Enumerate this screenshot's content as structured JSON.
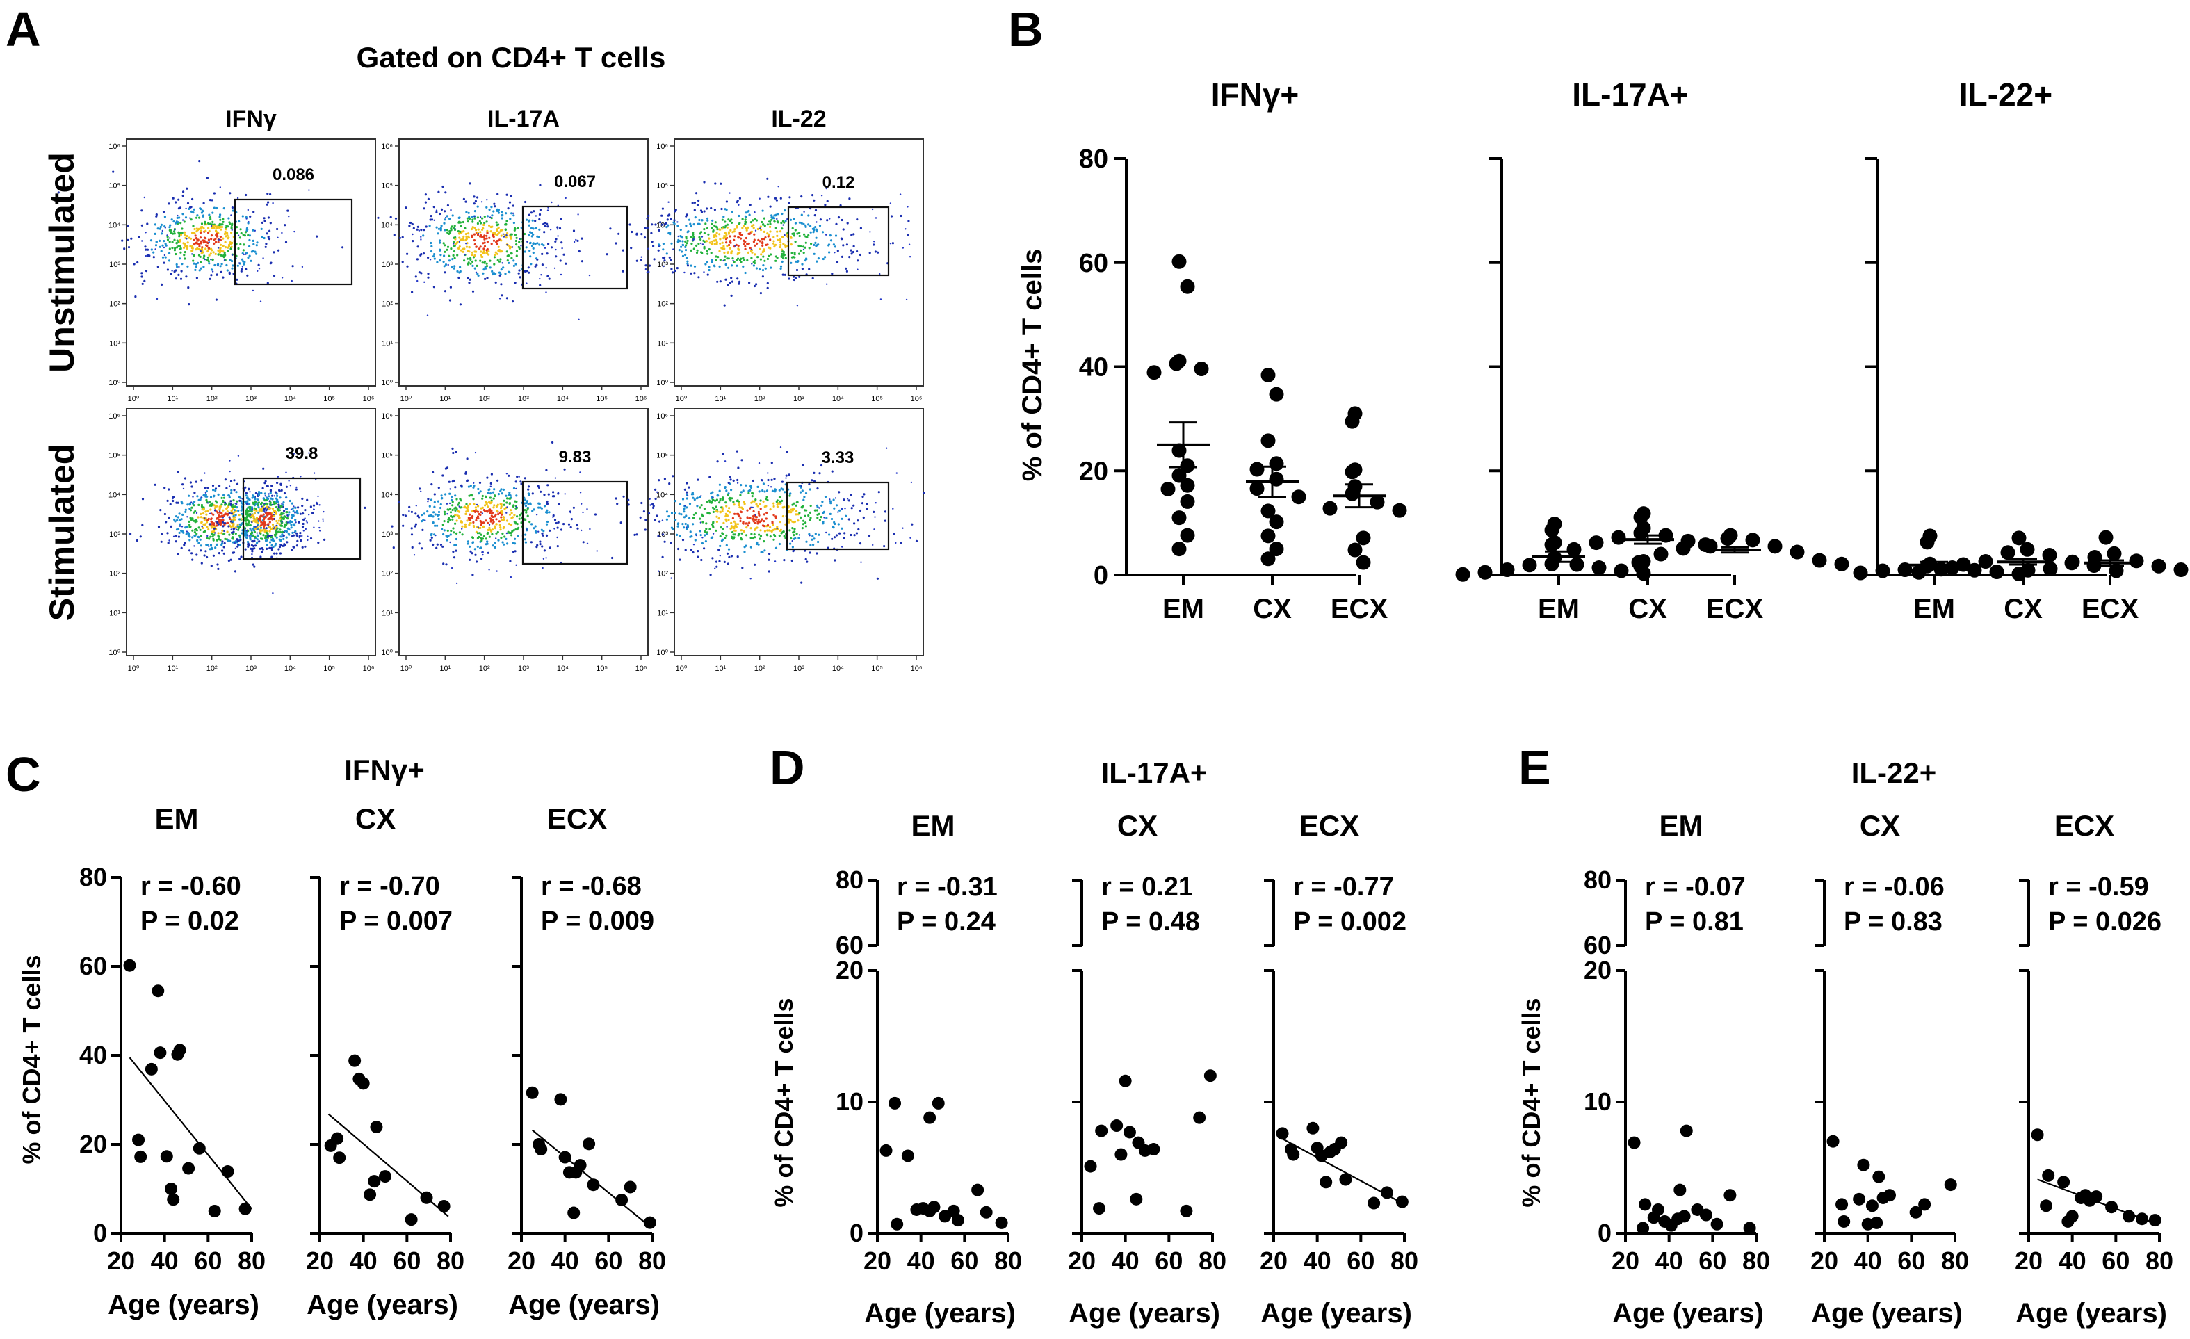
{
  "panel_letters": [
    "A",
    "B",
    "C",
    "D",
    "E"
  ],
  "ui": {
    "ylabel": "% of CD4+ T cells",
    "xlabel": "Age (years)"
  },
  "chart_data": {
    "A": {
      "type": "scatter",
      "title": "Gated on CD4+ T cells",
      "columns": [
        "IFNγ",
        "IL-17A",
        "IL-22"
      ],
      "rows": [
        "Unstimulated",
        "Stimulated"
      ],
      "gate_values": [
        [
          "0.086",
          "0.067",
          "0.12"
        ],
        [
          "39.8",
          "9.83",
          "3.33"
        ]
      ],
      "axis_ticks": [
        "10⁰",
        "10¹",
        "10²",
        "10³",
        "10⁴",
        "10⁵",
        "10⁶"
      ]
    },
    "B": {
      "type": "scatter",
      "ylabel": "% of CD4+ T cells",
      "ylim": [
        0,
        80
      ],
      "yticks": [
        0,
        20,
        40,
        60,
        80
      ],
      "categories": [
        "EM",
        "CX",
        "ECX"
      ],
      "panels": [
        {
          "title": "IFNγ+",
          "groups": [
            {
              "name": "EM",
              "mean": 25.0,
              "sem": 4.3,
              "values": [
                60.2,
                55.4,
                41.1,
                40.6,
                39.6,
                38.9,
                23.9,
                21.0,
                19.1,
                17.2,
                16.5,
                14.1,
                11.0,
                7.6,
                5.0
              ]
            },
            {
              "name": "CX",
              "mean": 17.9,
              "sem": 2.9,
              "values": [
                38.4,
                34.7,
                25.8,
                21.4,
                20.3,
                18.4,
                16.6,
                15.0,
                12.3,
                10.2,
                7.5,
                5.0,
                3.1
              ]
            },
            {
              "name": "ECX",
              "mean": 15.2,
              "sem": 2.2,
              "values": [
                31.0,
                29.5,
                20.2,
                19.8,
                17.0,
                15.6,
                14.0,
                12.8,
                12.4,
                7.1,
                4.8,
                2.4
              ]
            }
          ]
        },
        {
          "title": "IL-17A+",
          "groups": [
            {
              "name": "EM",
              "mean": 3.5,
              "sem": 1.0,
              "values": [
                9.8,
                8.6,
                6.2,
                5.8,
                3.3,
                2.1,
                2.0,
                1.9,
                1.4,
                1.0,
                0.8,
                0.5,
                0.3,
                0.1
              ]
            },
            {
              "name": "CX",
              "mean": 6.8,
              "sem": 0.8,
              "values": [
                11.8,
                11.1,
                9.0,
                8.1,
                7.6,
                7.2,
                6.5,
                6.2,
                5.5,
                4.9,
                2.6,
                1.6
              ]
            },
            {
              "name": "ECX",
              "mean": 4.8,
              "sem": 0.5,
              "values": [
                7.6,
                7.0,
                6.7,
                5.8,
                5.5,
                5.1,
                4.4,
                4.0,
                2.8,
                2.4,
                2.1
              ]
            }
          ]
        },
        {
          "title": "IL-22+",
          "groups": [
            {
              "name": "EM",
              "mean": 1.9,
              "sem": 0.6,
              "values": [
                7.5,
                6.3,
                2.1,
                1.7,
                1.4,
                1.0,
                0.9,
                0.8,
                0.6,
                0.4,
                0.2
              ]
            },
            {
              "name": "CX",
              "mean": 2.5,
              "sem": 0.5,
              "values": [
                7.1,
                4.9,
                4.3,
                3.8,
                2.6,
                2.3,
                2.0,
                1.8,
                1.1,
                0.8,
                0.5
              ]
            },
            {
              "name": "ECX",
              "mean": 2.3,
              "sem": 0.5,
              "values": [
                7.2,
                4.1,
                3.4,
                2.7,
                2.5,
                1.7,
                1.2,
                1.0,
                0.9,
                0.3
              ]
            }
          ]
        }
      ]
    },
    "C": {
      "type": "scatter",
      "title": "IFNγ+",
      "xlabel": "Age (years)",
      "ylabel": "% of CD4+ T cells",
      "xlim": [
        20,
        80
      ],
      "xticks": [
        20,
        40,
        60,
        80
      ],
      "ylim": [
        0,
        80
      ],
      "yticks": [
        0,
        20,
        40,
        60,
        80
      ],
      "subplots": [
        {
          "title": "EM",
          "r": "r = -0.60",
          "p": "P = 0.02",
          "fit": [
            [
              24,
              39.5
            ],
            [
              80,
              5.5
            ]
          ],
          "points": [
            [
              24,
              60.2
            ],
            [
              28,
              21
            ],
            [
              29,
              17.2
            ],
            [
              34,
              36.9
            ],
            [
              37,
              54.5
            ],
            [
              38,
              40.6
            ],
            [
              41,
              17.3
            ],
            [
              43,
              10
            ],
            [
              44,
              7.6
            ],
            [
              46,
              40.2
            ],
            [
              47,
              41.2
            ],
            [
              51,
              14.6
            ],
            [
              56,
              19.1
            ],
            [
              63,
              5
            ],
            [
              69,
              13.9
            ],
            [
              77,
              5.5
            ]
          ]
        },
        {
          "title": "CX",
          "r": "r = -0.70",
          "p": "P = 0.007",
          "fit": [
            [
              24,
              26.8
            ],
            [
              79,
              3.8
            ]
          ],
          "points": [
            [
              25,
              19.7
            ],
            [
              28,
              21.3
            ],
            [
              29,
              17
            ],
            [
              36,
              38.8
            ],
            [
              38,
              34.7
            ],
            [
              40,
              33.7
            ],
            [
              43,
              8.7
            ],
            [
              45,
              11.7
            ],
            [
              46,
              23.9
            ],
            [
              50,
              12.8
            ],
            [
              62,
              3.1
            ],
            [
              69,
              8
            ],
            [
              77,
              6.1
            ]
          ]
        },
        {
          "title": "ECX",
          "r": "r = -0.68",
          "p": "P = 0.009",
          "fit": [
            [
              25,
              23.2
            ],
            [
              79,
              1.5
            ]
          ],
          "points": [
            [
              25,
              31.6
            ],
            [
              28,
              20
            ],
            [
              29,
              18.9
            ],
            [
              38,
              30.1
            ],
            [
              40,
              17.1
            ],
            [
              42,
              13.7
            ],
            [
              44,
              4.6
            ],
            [
              45,
              13.7
            ],
            [
              47,
              15.3
            ],
            [
              51,
              20.1
            ],
            [
              53,
              10.9
            ],
            [
              66,
              7.5
            ],
            [
              70,
              10.4
            ],
            [
              79,
              2.4
            ]
          ]
        }
      ]
    },
    "D": {
      "type": "scatter",
      "title": "IL-17A+",
      "xlabel": "Age (years)",
      "ylabel": "% of CD4+ T cells",
      "xlim": [
        20,
        80
      ],
      "xticks": [
        20,
        40,
        60,
        80
      ],
      "ylim_lower": [
        0,
        20
      ],
      "ylim_upper": [
        60,
        80
      ],
      "yticks": [
        0,
        10,
        20,
        60,
        80
      ],
      "subplots": [
        {
          "title": "EM",
          "r": "r = -0.31",
          "p": "P = 0.24",
          "fit": null,
          "points": [
            [
              24,
              6.3
            ],
            [
              28,
              9.9
            ],
            [
              29,
              0.7
            ],
            [
              34,
              5.9
            ],
            [
              38,
              1.8
            ],
            [
              41,
              1.9
            ],
            [
              44,
              1.7
            ],
            [
              44,
              8.8
            ],
            [
              46,
              2.0
            ],
            [
              48,
              9.9
            ],
            [
              51,
              1.3
            ],
            [
              55,
              1.7
            ],
            [
              57,
              1.0
            ],
            [
              66,
              3.3
            ],
            [
              70,
              1.6
            ],
            [
              77,
              0.8
            ]
          ]
        },
        {
          "title": "CX",
          "r": "r = 0.21",
          "p": "P = 0.48",
          "fit": null,
          "points": [
            [
              24,
              5.1
            ],
            [
              28,
              1.9
            ],
            [
              29,
              7.8
            ],
            [
              36,
              8.2
            ],
            [
              38,
              6.0
            ],
            [
              40,
              11.6
            ],
            [
              42,
              7.7
            ],
            [
              45,
              2.6
            ],
            [
              46,
              6.9
            ],
            [
              49,
              6.3
            ],
            [
              53,
              6.4
            ],
            [
              68,
              1.7
            ],
            [
              74,
              8.8
            ],
            [
              79,
              12.0
            ]
          ]
        },
        {
          "title": "ECX",
          "r": "r = -0.77",
          "p": "P = 0.002",
          "fit": [
            [
              24,
              7.2
            ],
            [
              79,
              2.3
            ]
          ],
          "points": [
            [
              24,
              7.6
            ],
            [
              28,
              6.4
            ],
            [
              29,
              6.0
            ],
            [
              38,
              8.0
            ],
            [
              40,
              6.5
            ],
            [
              42,
              5.9
            ],
            [
              44,
              3.9
            ],
            [
              46,
              6.2
            ],
            [
              48,
              6.4
            ],
            [
              51,
              6.9
            ],
            [
              53,
              4.1
            ],
            [
              66,
              2.3
            ],
            [
              72,
              3.1
            ],
            [
              79,
              2.4
            ]
          ]
        }
      ]
    },
    "E": {
      "type": "scatter",
      "title": "IL-22+",
      "xlabel": "Age (years)",
      "ylabel": "% of CD4+ T cells",
      "xlim": [
        20,
        80
      ],
      "xticks": [
        20,
        40,
        60,
        80
      ],
      "ylim_lower": [
        0,
        20
      ],
      "ylim_upper": [
        60,
        80
      ],
      "yticks": [
        0,
        10,
        20,
        60,
        80
      ],
      "subplots": [
        {
          "title": "EM",
          "r": "r = -0.07",
          "p": "P = 0.81",
          "fit": null,
          "points": [
            [
              24,
              6.9
            ],
            [
              28,
              0.4
            ],
            [
              29,
              2.2
            ],
            [
              33,
              1.2
            ],
            [
              35,
              1.8
            ],
            [
              38,
              0.9
            ],
            [
              41,
              0.6
            ],
            [
              44,
              1.1
            ],
            [
              45,
              3.3
            ],
            [
              47,
              1.3
            ],
            [
              48,
              7.8
            ],
            [
              53,
              1.8
            ],
            [
              57,
              1.4
            ],
            [
              62,
              0.7
            ],
            [
              68,
              2.9
            ],
            [
              77,
              0.4
            ]
          ]
        },
        {
          "title": "CX",
          "r": "r = -0.06",
          "p": "P = 0.83",
          "fit": null,
          "points": [
            [
              24,
              7.0
            ],
            [
              28,
              2.2
            ],
            [
              29,
              0.9
            ],
            [
              36,
              2.6
            ],
            [
              38,
              5.2
            ],
            [
              40,
              0.7
            ],
            [
              42,
              2.1
            ],
            [
              44,
              0.8
            ],
            [
              45,
              4.3
            ],
            [
              47,
              2.7
            ],
            [
              50,
              2.9
            ],
            [
              62,
              1.6
            ],
            [
              66,
              2.2
            ],
            [
              78,
              3.7
            ]
          ]
        },
        {
          "title": "ECX",
          "r": "r = -0.59",
          "p": "P = 0.026",
          "fit": [
            [
              24,
              4.1
            ],
            [
              79,
              0.7
            ]
          ],
          "points": [
            [
              24,
              7.5
            ],
            [
              28,
              2.1
            ],
            [
              29,
              4.4
            ],
            [
              36,
              3.9
            ],
            [
              38,
              0.9
            ],
            [
              40,
              1.3
            ],
            [
              44,
              2.7
            ],
            [
              46,
              2.9
            ],
            [
              48,
              2.5
            ],
            [
              51,
              2.8
            ],
            [
              58,
              2.0
            ],
            [
              66,
              1.3
            ],
            [
              72,
              1.1
            ],
            [
              78,
              1.0
            ]
          ]
        }
      ]
    }
  }
}
